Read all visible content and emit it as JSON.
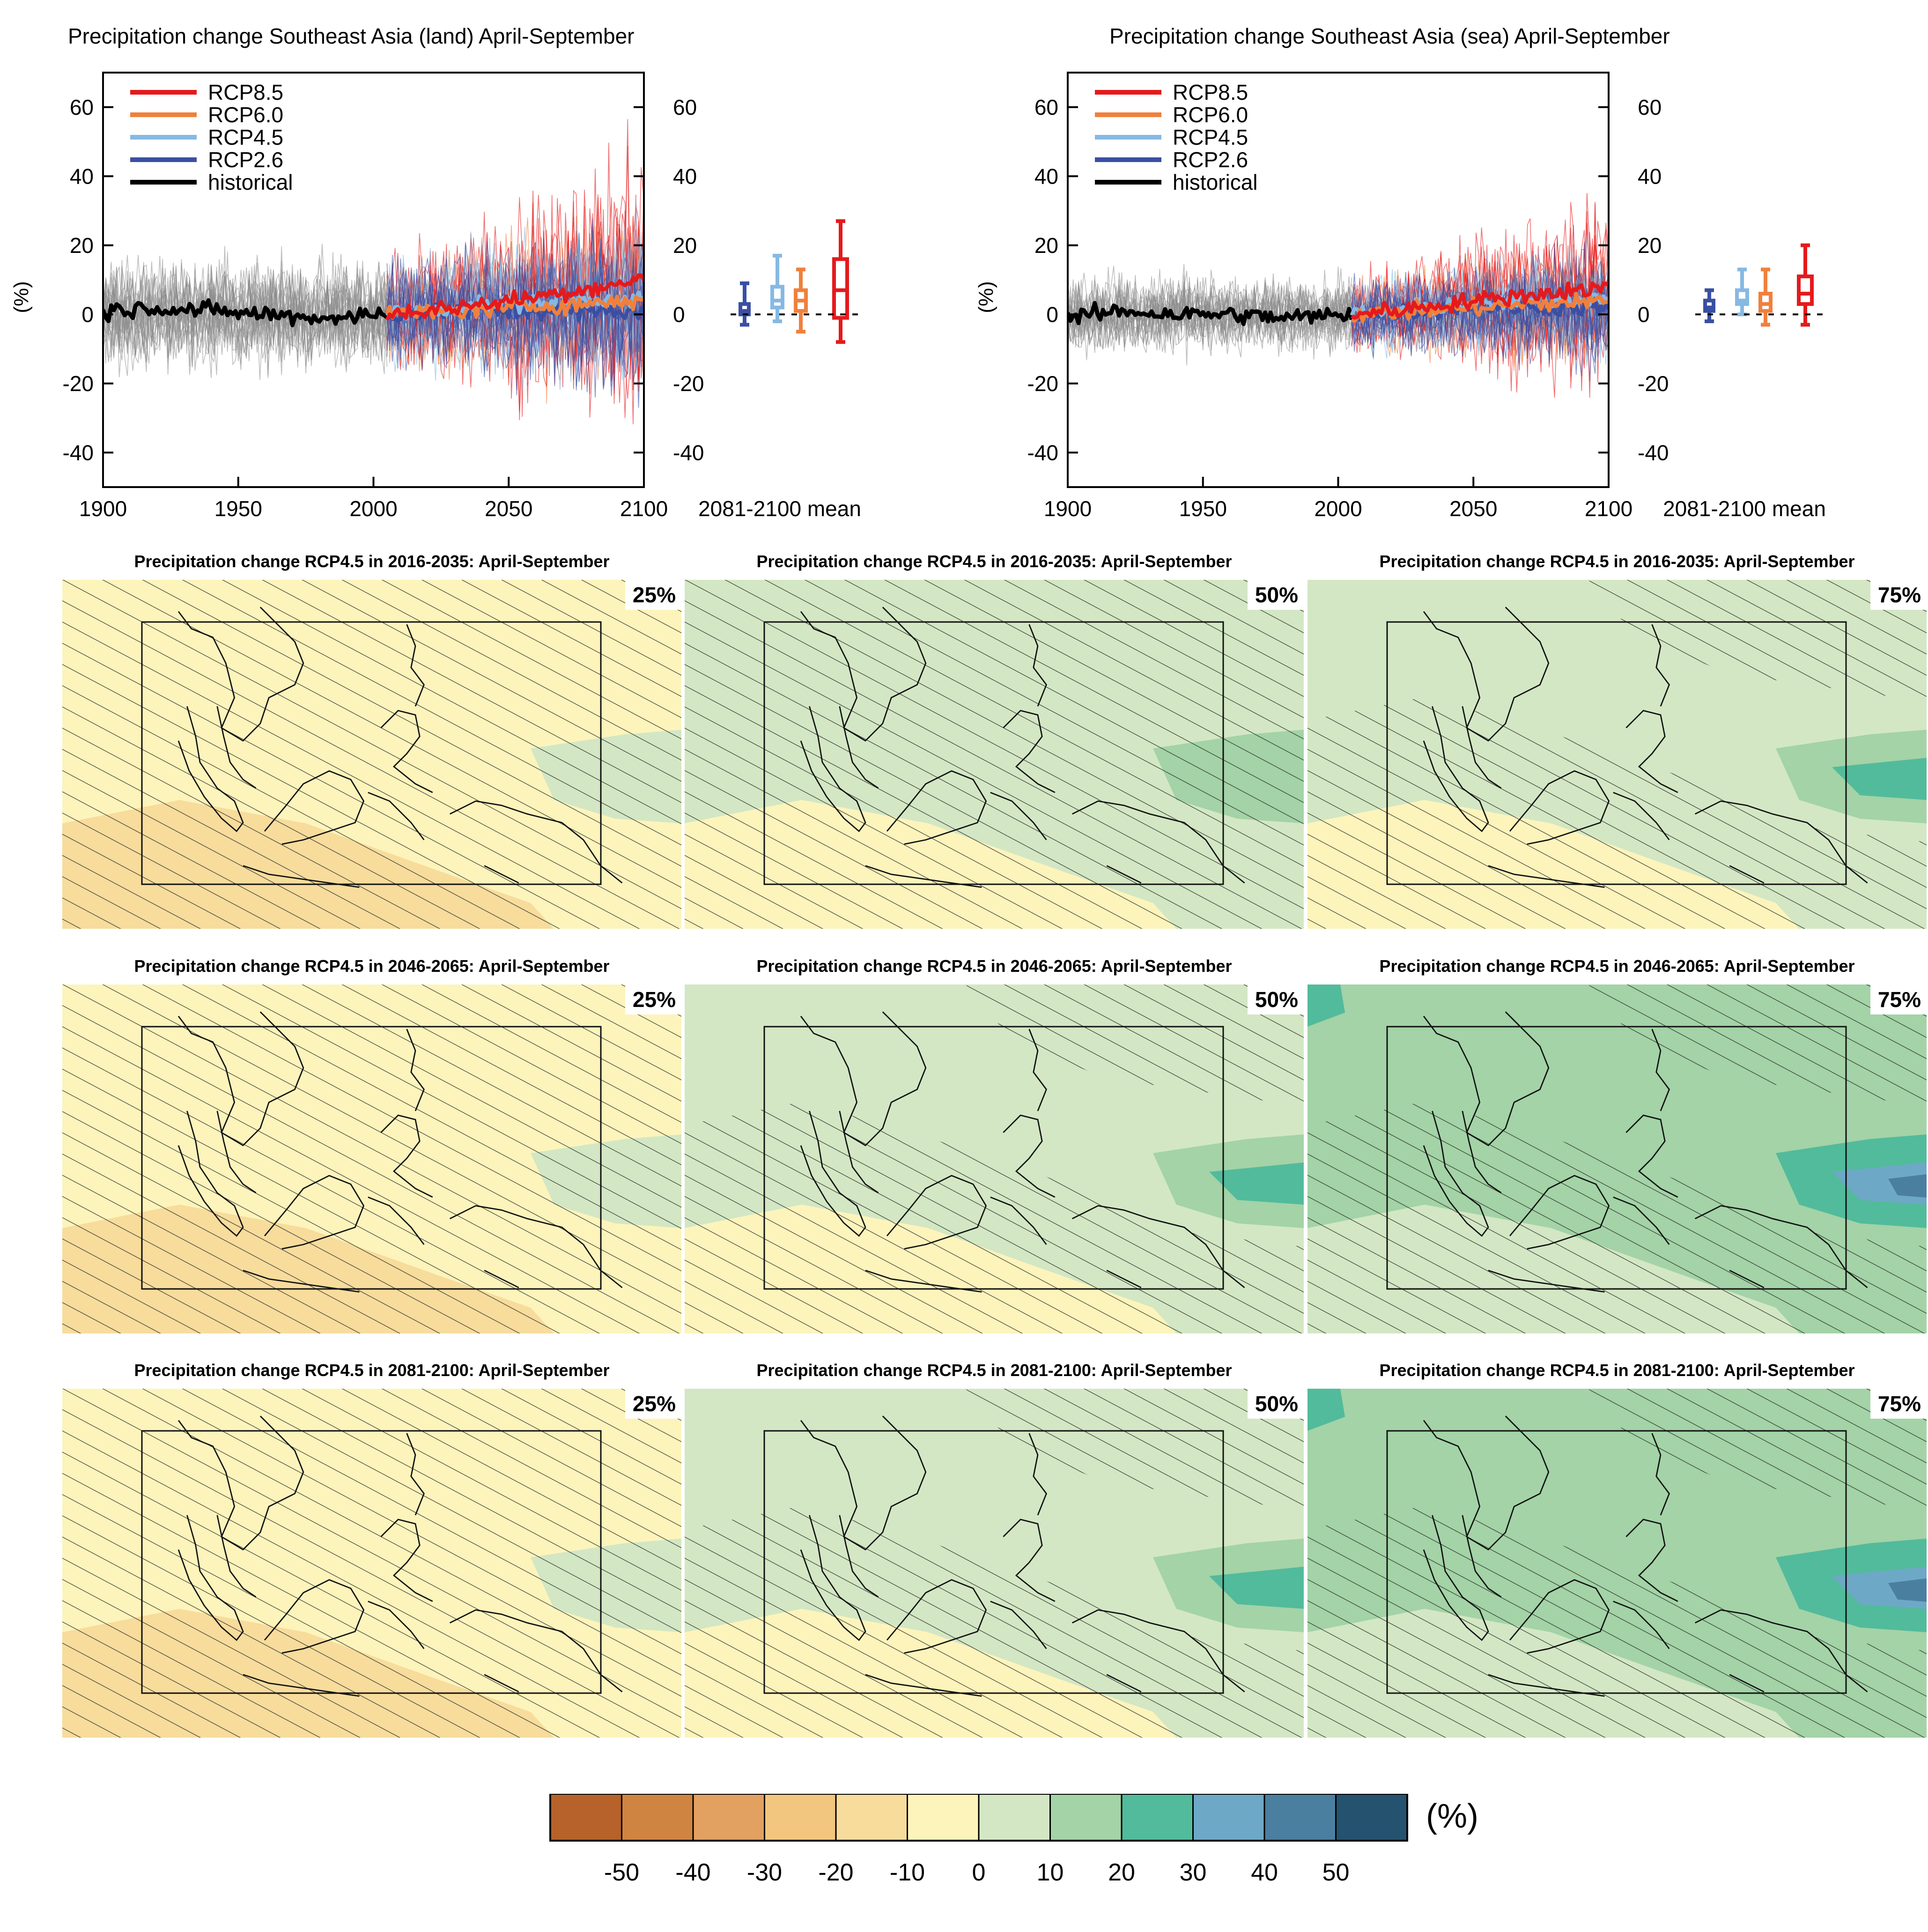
{
  "colors": {
    "rcp85": "#e41a1c",
    "rcp60": "#f0803c",
    "rcp45": "#86b9e3",
    "rcp26": "#3a4fa3",
    "historical": "#000000",
    "model_runs": "#8a8a8a"
  },
  "chart_data": [
    {
      "type": "line",
      "title": "Precipitation change Southeast Asia (land) April-September",
      "ylabel": "(%)",
      "xlim": [
        1900,
        2100
      ],
      "ylim": [
        -50,
        70
      ],
      "xticks": [
        "1900",
        "1950",
        "2000",
        "2050",
        "2100"
      ],
      "yticks": [
        "60",
        "40",
        "20",
        "0",
        "-20",
        "-40"
      ],
      "legend": {
        "position": "top-left",
        "entries": [
          "RCP8.5",
          "RCP6.0",
          "RCP4.5",
          "RCP2.6",
          "historical"
        ]
      },
      "series": [
        {
          "name": "historical",
          "x": [
            1900,
            1920,
            1940,
            1960,
            1980,
            2005
          ],
          "values": [
            1,
            2,
            1,
            0,
            -1,
            0
          ]
        },
        {
          "name": "RCP2.6",
          "x": [
            2005,
            2030,
            2050,
            2075,
            2100
          ],
          "values": [
            0,
            1,
            1,
            1,
            1
          ]
        },
        {
          "name": "RCP4.5",
          "x": [
            2005,
            2030,
            2050,
            2075,
            2100
          ],
          "values": [
            0,
            2,
            3,
            4,
            5
          ]
        },
        {
          "name": "RCP6.0",
          "x": [
            2005,
            2030,
            2050,
            2075,
            2100
          ],
          "values": [
            0,
            1,
            2,
            3,
            4
          ]
        },
        {
          "name": "RCP8.5",
          "x": [
            2005,
            2030,
            2050,
            2075,
            2100
          ],
          "values": [
            0,
            2,
            4,
            7,
            10
          ]
        }
      ],
      "boxplot": {
        "label": "2081-2100 mean",
        "boxes": [
          {
            "name": "RCP2.6",
            "min": -3,
            "q1": 0,
            "median": 1,
            "q3": 3,
            "max": 9
          },
          {
            "name": "RCP4.5",
            "min": -2,
            "q1": 2,
            "median": 4,
            "q3": 8,
            "max": 17
          },
          {
            "name": "RCP6.0",
            "min": -5,
            "q1": 1,
            "median": 4,
            "q3": 7,
            "max": 13
          },
          {
            "name": "RCP8.5",
            "min": -8,
            "q1": -1,
            "median": 7,
            "q3": 16,
            "max": 27
          }
        ]
      }
    },
    {
      "type": "line",
      "title": "Precipitation change Southeast Asia (sea) April-September",
      "ylabel": "(%)",
      "xlim": [
        1900,
        2100
      ],
      "ylim": [
        -50,
        70
      ],
      "xticks": [
        "1900",
        "1950",
        "2000",
        "2050",
        "2100"
      ],
      "yticks": [
        "60",
        "40",
        "20",
        "0",
        "-20",
        "-40"
      ],
      "legend": {
        "position": "top-left",
        "entries": [
          "RCP8.5",
          "RCP6.0",
          "RCP4.5",
          "RCP2.6",
          "historical"
        ]
      },
      "series": [
        {
          "name": "historical",
          "x": [
            1900,
            1920,
            1940,
            1960,
            1980,
            2005
          ],
          "values": [
            -1,
            1,
            0,
            0,
            -1,
            0
          ]
        },
        {
          "name": "RCP2.6",
          "x": [
            2005,
            2030,
            2050,
            2075,
            2100
          ],
          "values": [
            0,
            1,
            2,
            2,
            2
          ]
        },
        {
          "name": "RCP4.5",
          "x": [
            2005,
            2030,
            2050,
            2075,
            2100
          ],
          "values": [
            0,
            2,
            3,
            4,
            5
          ]
        },
        {
          "name": "RCP6.0",
          "x": [
            2005,
            2030,
            2050,
            2075,
            2100
          ],
          "values": [
            0,
            1,
            2,
            3,
            4
          ]
        },
        {
          "name": "RCP8.5",
          "x": [
            2005,
            2030,
            2050,
            2075,
            2100
          ],
          "values": [
            0,
            2,
            4,
            6,
            8
          ]
        }
      ],
      "boxplot": {
        "label": "2081-2100 mean",
        "boxes": [
          {
            "name": "RCP2.6",
            "min": -2,
            "q1": 1,
            "median": 2,
            "q3": 4,
            "max": 7
          },
          {
            "name": "RCP4.5",
            "min": 0,
            "q1": 3,
            "median": 4,
            "q3": 7,
            "max": 13
          },
          {
            "name": "RCP6.0",
            "min": -3,
            "q1": 1,
            "median": 3,
            "q3": 6,
            "max": 13
          },
          {
            "name": "RCP8.5",
            "min": -3,
            "q1": 3,
            "median": 6,
            "q3": 11,
            "max": 20
          }
        ]
      }
    },
    {
      "type": "heatmap",
      "panels": [
        {
          "title": "Precipitation change RCP4.5 in 2016-2035: April-September",
          "percentile": "25%",
          "level": -5
        },
        {
          "title": "Precipitation change RCP4.5 in 2016-2035: April-September",
          "percentile": "50%",
          "level": 0
        },
        {
          "title": "Precipitation change RCP4.5 in 2016-2035: April-September",
          "percentile": "75%",
          "level": 5
        },
        {
          "title": "Precipitation change RCP4.5 in 2046-2065: April-September",
          "percentile": "25%",
          "level": -5
        },
        {
          "title": "Precipitation change RCP4.5 in 2046-2065: April-September",
          "percentile": "50%",
          "level": 5
        },
        {
          "title": "Precipitation change RCP4.5 in 2046-2065: April-September",
          "percentile": "75%",
          "level": 10
        },
        {
          "title": "Precipitation change RCP4.5 in 2081-2100: April-September",
          "percentile": "25%",
          "level": -5
        },
        {
          "title": "Precipitation change RCP4.5 in 2081-2100: April-September",
          "percentile": "50%",
          "level": 5
        },
        {
          "title": "Precipitation change RCP4.5 in 2081-2100: April-September",
          "percentile": "75%",
          "level": 10
        }
      ],
      "colorbar": {
        "unit": "(%)",
        "ticks": [
          "-50",
          "-40",
          "-30",
          "-20",
          "-10",
          "0",
          "10",
          "20",
          "30",
          "40",
          "50"
        ],
        "colors": [
          "#b6622a",
          "#d08442",
          "#e2a061",
          "#f2c67e",
          "#f7dc9c",
          "#fdf4bc",
          "#d3e7c4",
          "#a3d3a6",
          "#52bb9c",
          "#6ea8c7",
          "#4a7fa0",
          "#24526f"
        ]
      }
    }
  ]
}
